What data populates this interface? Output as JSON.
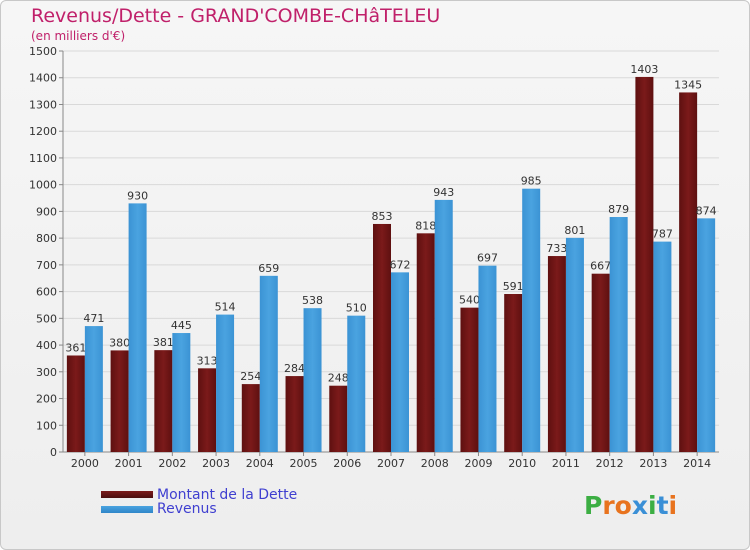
{
  "title": "Revenus/Dette - GRAND'COMBE-CHâTELEU",
  "subtitle": "(en milliers d'€)",
  "logo_text": "Proxiti",
  "colors": {
    "debt": "#7b1a1a",
    "revenue": "#4aa3e0",
    "title": "#c0206a",
    "legend_text": "#3f3fd0",
    "logo": [
      "#3cae43",
      "#e8731e",
      "#e8731e",
      "#3a8fd6",
      "#3cae43",
      "#3a8fd6",
      "#e8731e"
    ]
  },
  "legend": [
    {
      "label": "Montant de la Dette",
      "color": "#7b1a1a"
    },
    {
      "label": "Revenus",
      "color": "#4aa3e0"
    }
  ],
  "chart_data": {
    "type": "bar",
    "categories": [
      "2000",
      "2001",
      "2002",
      "2003",
      "2004",
      "2005",
      "2006",
      "2007",
      "2008",
      "2009",
      "2010",
      "2011",
      "2012",
      "2013",
      "2014"
    ],
    "series": [
      {
        "name": "Montant de la Dette",
        "values": [
          361,
          380,
          381,
          313,
          254,
          284,
          248,
          853,
          818,
          540,
          591,
          733,
          667,
          1403,
          1345
        ]
      },
      {
        "name": "Revenus",
        "values": [
          471,
          930,
          445,
          514,
          659,
          538,
          510,
          672,
          943,
          697,
          985,
          801,
          879,
          787,
          874
        ]
      }
    ],
    "ylim": [
      0,
      1500
    ],
    "yticks": [
      0,
      100,
      200,
      300,
      400,
      500,
      600,
      700,
      800,
      900,
      1000,
      1100,
      1200,
      1300,
      1400,
      1500
    ],
    "grid": true,
    "legend_position": "bottom-left"
  }
}
